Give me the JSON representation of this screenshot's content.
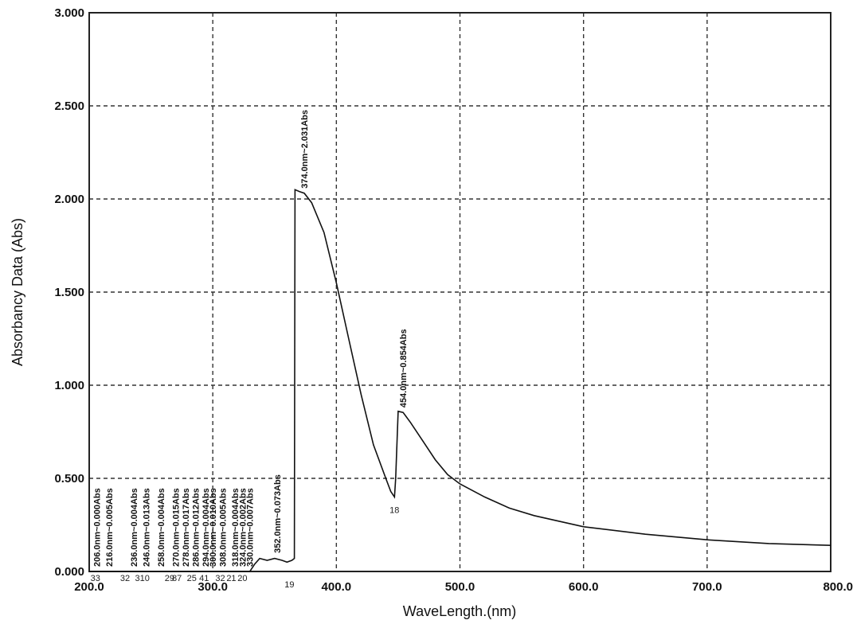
{
  "chart_data": {
    "type": "line",
    "xlabel": "WaveLength.(nm)",
    "ylabel": "Absorbancy Data (Abs)",
    "xlim": [
      200,
      800
    ],
    "ylim": [
      0,
      3
    ],
    "grid": true,
    "x_ticks": [
      "200.0",
      "300.0",
      "400.0",
      "500.0",
      "600.0",
      "700.0",
      "800.0"
    ],
    "y_ticks": [
      "0.000",
      "0.500",
      "1.000",
      "1.500",
      "2.000",
      "2.500",
      "3.000"
    ],
    "series": [
      {
        "x": [
          200,
          330,
          334,
          338,
          344,
          350,
          356,
          360,
          364,
          366,
          366.5,
          370,
          374,
          380,
          390,
          400,
          410,
          420,
          430,
          440,
          444,
          446,
          447,
          448,
          450,
          454,
          460,
          470,
          480,
          490,
          500,
          520,
          540,
          560,
          580,
          600,
          650,
          700,
          750,
          800
        ],
        "y": [
          0.0,
          0.0,
          0.04,
          0.07,
          0.06,
          0.07,
          0.06,
          0.05,
          0.06,
          0.07,
          2.05,
          2.04,
          2.031,
          1.98,
          1.82,
          1.55,
          1.25,
          0.95,
          0.68,
          0.5,
          0.43,
          0.41,
          0.4,
          0.5,
          0.86,
          0.854,
          0.8,
          0.7,
          0.6,
          0.52,
          0.47,
          0.4,
          0.34,
          0.3,
          0.27,
          0.24,
          0.2,
          0.17,
          0.15,
          0.14
        ]
      }
    ],
    "annotations": [
      {
        "x": 206,
        "y": 0.0,
        "text": "206.0nm~0.000Abs"
      },
      {
        "x": 216,
        "y": 0.0,
        "text": "216.0nm~0.005Abs"
      },
      {
        "x": 236,
        "y": 0.0,
        "text": "236.0nm~0.004Abs"
      },
      {
        "x": 246,
        "y": 0.0,
        "text": "246.0nm~0.013Abs"
      },
      {
        "x": 258,
        "y": 0.0,
        "text": "258.0nm~0.004Abs"
      },
      {
        "x": 270,
        "y": 0.0,
        "text": "270.0nm~0.015Abs"
      },
      {
        "x": 278,
        "y": 0.0,
        "text": "278.0nm~0.017Abs"
      },
      {
        "x": 286,
        "y": 0.0,
        "text": "286.0nm~0.012Abs"
      },
      {
        "x": 294,
        "y": 0.0,
        "text": "294.0nm~0.004Abs"
      },
      {
        "x": 300,
        "y": 0.0,
        "text": "300.0nm~0.010Abs"
      },
      {
        "x": 308,
        "y": 0.0,
        "text": "308.0nm~0.005Abs"
      },
      {
        "x": 318,
        "y": 0.0,
        "text": "318.0nm~0.004Abs"
      },
      {
        "x": 324,
        "y": 0.0,
        "text": "324.0nm~0.002Abs"
      },
      {
        "x": 330,
        "y": 0.0,
        "text": "330.0nm~0.007Abs"
      },
      {
        "x": 352,
        "y": 0.073,
        "text": "352.0nm~0.073Abs"
      },
      {
        "x": 374,
        "y": 2.031,
        "text": "374.0nm~2.031Abs"
      },
      {
        "x": 454,
        "y": 0.854,
        "text": "454.0nm~0.854Abs"
      }
    ],
    "peak_markers": [
      {
        "x": 205,
        "text": "33"
      },
      {
        "x": 229,
        "text": "32"
      },
      {
        "x": 243,
        "text": "310"
      },
      {
        "x": 265,
        "text": "29"
      },
      {
        "x": 271,
        "text": "87"
      },
      {
        "x": 283,
        "text": "25"
      },
      {
        "x": 293,
        "text": "41"
      },
      {
        "x": 306,
        "text": "32"
      },
      {
        "x": 315,
        "text": "21"
      },
      {
        "x": 324,
        "text": "20"
      },
      {
        "x": 362,
        "y": 0,
        "text": "19"
      },
      {
        "x": 447,
        "y": 0.4,
        "text": "18"
      }
    ]
  }
}
